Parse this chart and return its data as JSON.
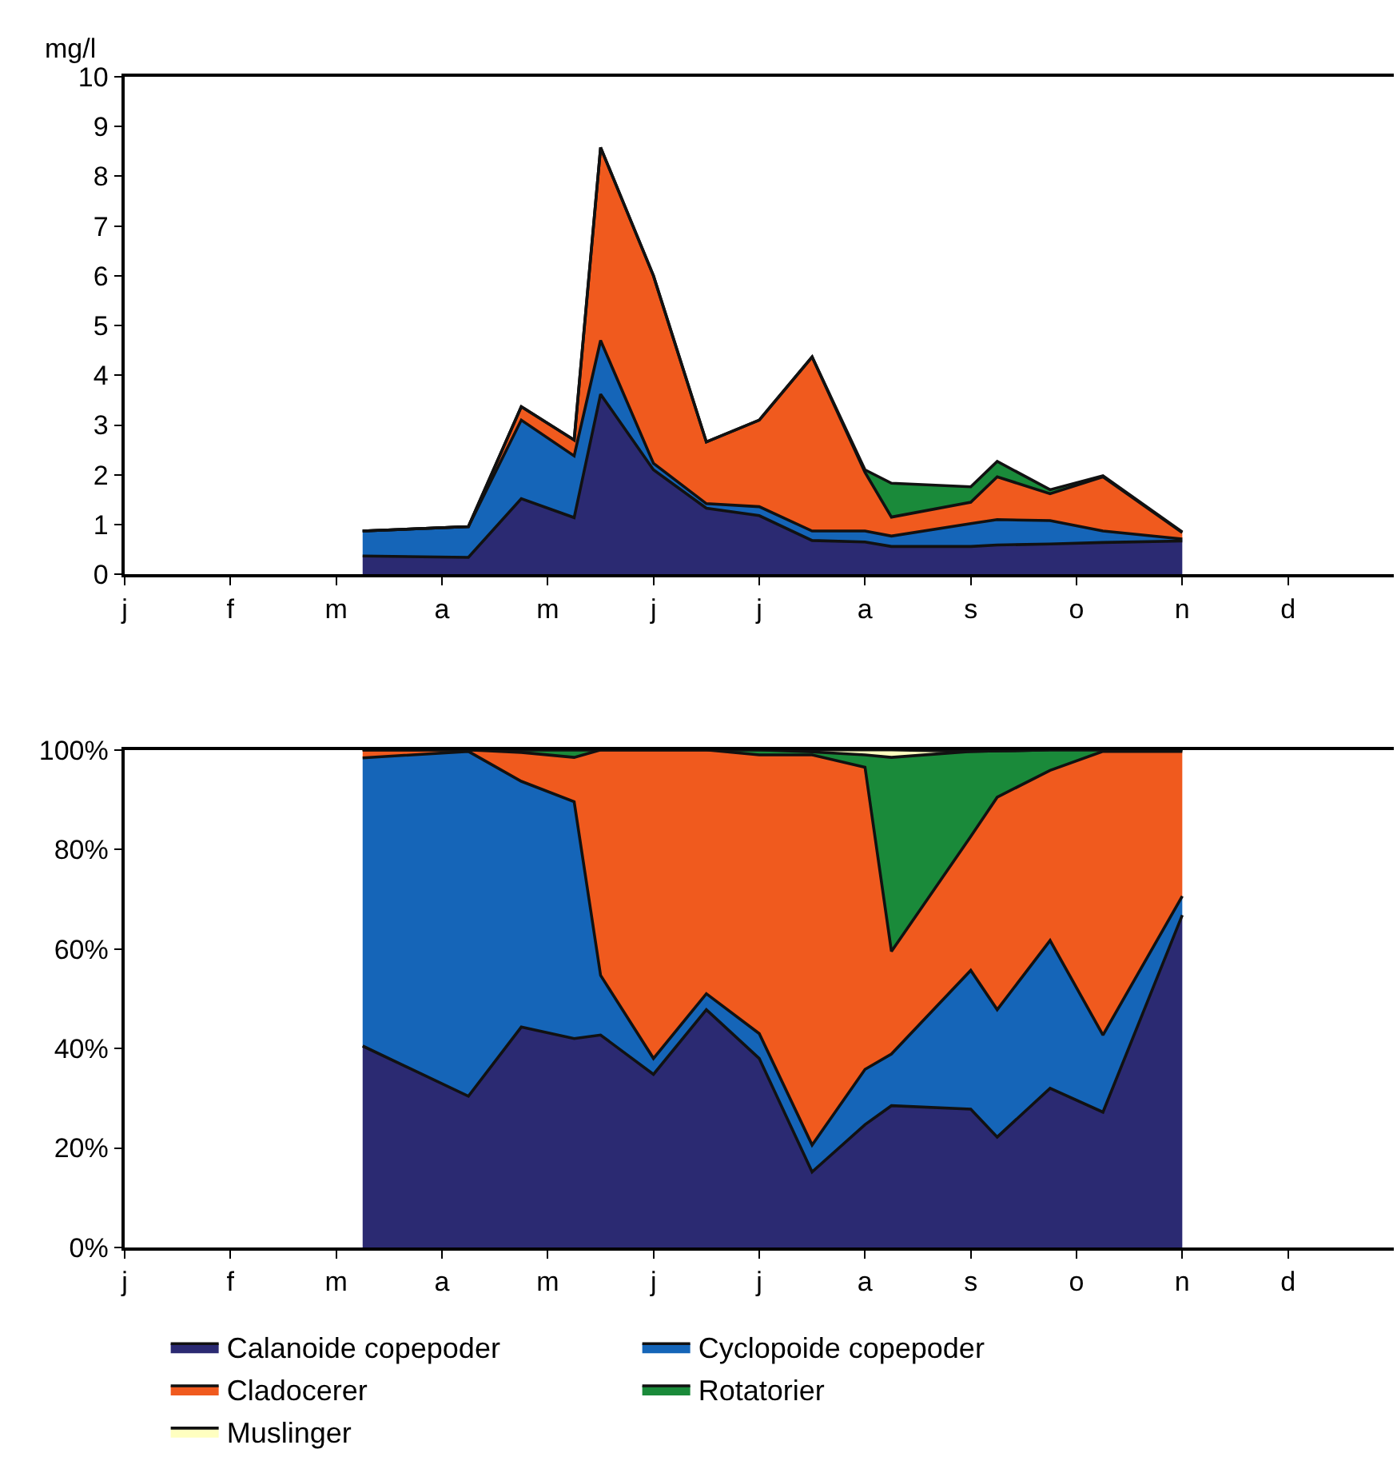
{
  "chart_data": [
    {
      "type": "area",
      "stacked": true,
      "ylabel": "mg/l",
      "legend": false,
      "categories": [
        "j",
        null,
        null,
        null,
        "f",
        null,
        null,
        null,
        "m",
        null,
        null,
        null,
        "a",
        null,
        null,
        null,
        "m",
        null,
        null,
        null,
        "j",
        null,
        null,
        null,
        "j",
        null,
        null,
        null,
        "a",
        null,
        null,
        null,
        "s",
        null,
        null,
        null,
        "o",
        null,
        null,
        null,
        "n",
        null,
        null,
        null,
        "d",
        null,
        null,
        null
      ],
      "ylim": [
        0,
        10
      ],
      "yticks": [
        0,
        1,
        2,
        3,
        4,
        5,
        6,
        7,
        8,
        9,
        10
      ],
      "series": [
        {
          "color": "#2b2a72",
          "values": [
            null,
            null,
            null,
            null,
            null,
            null,
            null,
            null,
            null,
            0.37,
            null,
            null,
            null,
            0.34,
            null,
            1.52,
            null,
            1.14,
            3.62,
            null,
            2.1,
            null,
            1.33,
            null,
            1.18,
            null,
            0.68,
            null,
            0.65,
            0.56,
            null,
            null,
            0.56,
            0.59,
            null,
            0.61,
            null,
            0.64,
            null,
            null,
            0.67,
            null,
            null,
            null,
            null,
            null,
            null,
            null
          ]
        },
        {
          "color": "#1565b8",
          "values": [
            null,
            null,
            null,
            null,
            null,
            null,
            null,
            null,
            null,
            0.5,
            null,
            null,
            null,
            0.62,
            null,
            1.58,
            null,
            1.24,
            1.08,
            null,
            0.13,
            null,
            0.09,
            null,
            0.18,
            null,
            0.19,
            null,
            0.22,
            0.21,
            null,
            null,
            0.46,
            0.51,
            null,
            0.47,
            null,
            0.23,
            null,
            null,
            0.04,
            null,
            null,
            null,
            null,
            null,
            null,
            null
          ]
        },
        {
          "color": "#f05a1e",
          "values": [
            null,
            null,
            null,
            null,
            null,
            null,
            null,
            null,
            null,
            0,
            null,
            null,
            null,
            0,
            null,
            0.27,
            null,
            0.32,
            3.88,
            null,
            3.77,
            null,
            1.24,
            null,
            1.74,
            null,
            3.5,
            null,
            1.18,
            0.38,
            null,
            null,
            0.43,
            0.86,
            null,
            0.54,
            null,
            1.09,
            null,
            null,
            0.13,
            null,
            null,
            null,
            null,
            null,
            null,
            null
          ]
        },
        {
          "color": "#1a8a3a",
          "values": [
            null,
            null,
            null,
            null,
            null,
            null,
            null,
            null,
            null,
            0,
            null,
            null,
            null,
            0,
            null,
            0,
            null,
            0,
            0,
            null,
            0,
            null,
            0,
            null,
            0,
            null,
            0,
            null,
            0.05,
            0.68,
            null,
            null,
            0.31,
            0.31,
            null,
            0.08,
            null,
            0.02,
            null,
            null,
            0.01,
            null,
            null,
            null,
            null,
            null,
            null,
            null
          ]
        }
      ]
    },
    {
      "type": "area",
      "stacked": true,
      "legend": "bottom",
      "categories": [
        "j",
        null,
        null,
        null,
        "f",
        null,
        null,
        null,
        "m",
        null,
        null,
        null,
        "a",
        null,
        null,
        null,
        "m",
        null,
        null,
        null,
        "j",
        null,
        null,
        null,
        "j",
        null,
        null,
        null,
        "a",
        null,
        null,
        null,
        "s",
        null,
        null,
        null,
        "o",
        null,
        null,
        null,
        "n",
        null,
        null,
        null,
        "d",
        null,
        null,
        null
      ],
      "ylim": [
        0,
        100
      ],
      "yticks": [
        {
          "value": 0,
          "label": "0%"
        },
        {
          "value": 20,
          "label": "20%"
        },
        {
          "value": 40,
          "label": "40%"
        },
        {
          "value": 60,
          "label": "60%"
        },
        {
          "value": 80,
          "label": "80%"
        },
        {
          "value": 100,
          "label": "100%"
        }
      ],
      "series": [
        {
          "name": "Calanoide copepoder",
          "color": "#2b2a72",
          "values": [
            null,
            null,
            null,
            null,
            null,
            null,
            null,
            null,
            null,
            40.5,
            null,
            null,
            null,
            30.4,
            null,
            44.3,
            null,
            42,
            42.7,
            null,
            34.8,
            null,
            47.8,
            null,
            38,
            null,
            15.2,
            null,
            24.7,
            28.5,
            null,
            null,
            27.8,
            22.2,
            null,
            32,
            null,
            27.2,
            null,
            null,
            66.8,
            null,
            null,
            null,
            null,
            null,
            null,
            null
          ]
        },
        {
          "name": "Cyclopoide copepoder",
          "color": "#1565b8",
          "values": [
            null,
            null,
            null,
            null,
            null,
            null,
            null,
            null,
            null,
            57.9,
            null,
            null,
            null,
            69.3,
            null,
            49.4,
            null,
            47.6,
            12,
            null,
            3.2,
            null,
            3.2,
            null,
            5,
            null,
            5.4,
            null,
            11.1,
            10.4,
            null,
            null,
            27.9,
            25.6,
            null,
            29.7,
            null,
            15.5,
            null,
            null,
            3.8,
            null,
            null,
            null,
            null,
            null,
            null,
            null
          ]
        },
        {
          "name": "Cladocerer",
          "color": "#f05a1e",
          "values": [
            null,
            null,
            null,
            null,
            null,
            null,
            null,
            null,
            null,
            1.6,
            null,
            null,
            null,
            0.3,
            null,
            5.8,
            null,
            8.9,
            45.3,
            null,
            62,
            null,
            49,
            null,
            56,
            null,
            78.4,
            null,
            60.7,
            20.6,
            null,
            null,
            26.9,
            42.7,
            null,
            34.2,
            null,
            57,
            null,
            null,
            29.1,
            null,
            null,
            null,
            null,
            null,
            null,
            null
          ]
        },
        {
          "name": "Rotatorier",
          "color": "#1a8a3a",
          "values": [
            null,
            null,
            null,
            null,
            null,
            null,
            null,
            null,
            null,
            0,
            null,
            null,
            null,
            0,
            null,
            0.5,
            null,
            1.5,
            0,
            null,
            0,
            null,
            0,
            null,
            1,
            null,
            0.6,
            null,
            2.5,
            39,
            null,
            null,
            17.1,
            9.3,
            null,
            4.1,
            null,
            0.3,
            null,
            null,
            0.3,
            null,
            null,
            null,
            null,
            null,
            null,
            null
          ]
        },
        {
          "name": "Muslinger",
          "color": "#ffffc0",
          "values": [
            null,
            null,
            null,
            null,
            null,
            null,
            null,
            null,
            null,
            0,
            null,
            null,
            null,
            0,
            null,
            0,
            null,
            0,
            0,
            null,
            0,
            null,
            0,
            null,
            0,
            null,
            0.4,
            null,
            1,
            1.5,
            null,
            null,
            0,
            0,
            null,
            0,
            null,
            0,
            null,
            null,
            0,
            null,
            null,
            null,
            null,
            null,
            null,
            null
          ]
        }
      ]
    }
  ]
}
